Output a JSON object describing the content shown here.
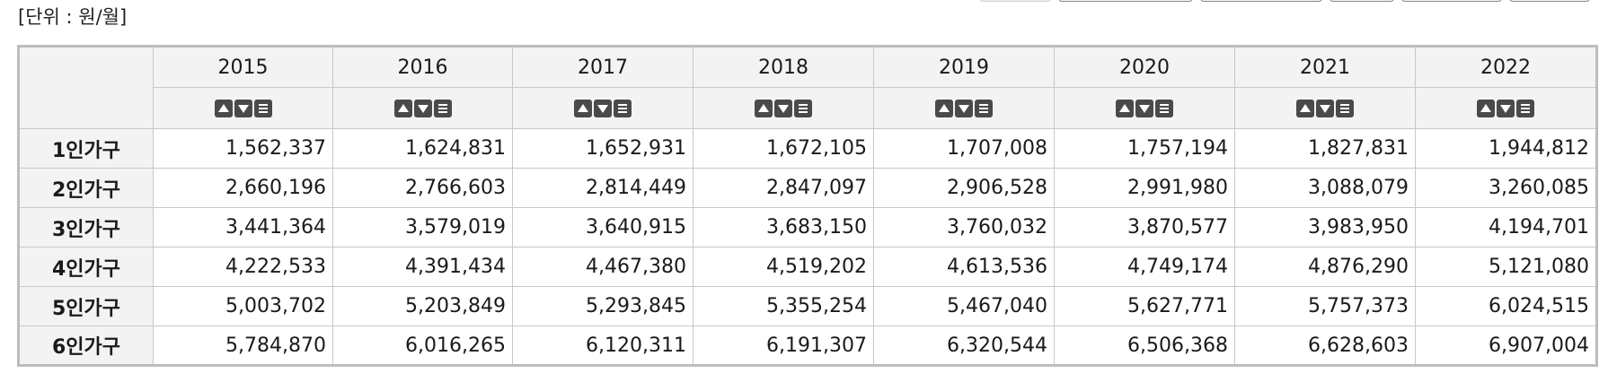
{
  "unit_label": "[단위 : 원/월]",
  "icons": {
    "sort_ascending": "triangle-up-icon",
    "sort_descending": "triangle-down-icon",
    "column_menu": "menu-icon"
  },
  "table": {
    "corner": "",
    "years": [
      "2015",
      "2016",
      "2017",
      "2018",
      "2019",
      "2020",
      "2021",
      "2022"
    ],
    "rows": [
      {
        "label": "1인가구",
        "values": [
          "1,562,337",
          "1,624,831",
          "1,652,931",
          "1,672,105",
          "1,707,008",
          "1,757,194",
          "1,827,831",
          "1,944,812"
        ]
      },
      {
        "label": "2인가구",
        "values": [
          "2,660,196",
          "2,766,603",
          "2,814,449",
          "2,847,097",
          "2,906,528",
          "2,991,980",
          "3,088,079",
          "3,260,085"
        ]
      },
      {
        "label": "3인가구",
        "values": [
          "3,441,364",
          "3,579,019",
          "3,640,915",
          "3,683,150",
          "3,760,032",
          "3,870,577",
          "3,983,950",
          "4,194,701"
        ]
      },
      {
        "label": "4인가구",
        "values": [
          "4,222,533",
          "4,391,434",
          "4,467,380",
          "4,519,202",
          "4,613,536",
          "4,749,174",
          "4,876,290",
          "5,121,080"
        ]
      },
      {
        "label": "5인가구",
        "values": [
          "5,003,702",
          "5,203,849",
          "5,293,845",
          "5,355,254",
          "5,467,040",
          "5,627,771",
          "5,757,373",
          "6,024,515"
        ]
      },
      {
        "label": "6인가구",
        "values": [
          "5,784,870",
          "6,016,265",
          "6,120,311",
          "6,191,307",
          "6,320,544",
          "6,506,368",
          "6,628,603",
          "6,907,004"
        ]
      }
    ]
  }
}
